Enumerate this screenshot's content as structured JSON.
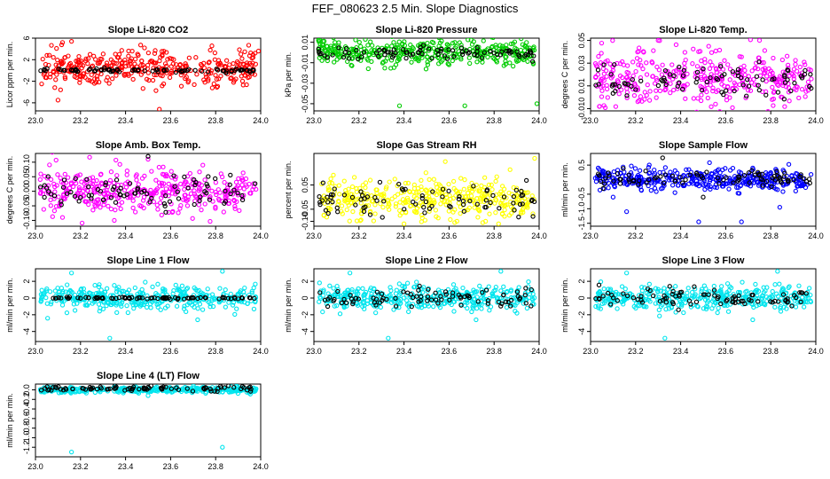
{
  "figure": {
    "title": "FEF_080623  2.5 Min. Slope Diagnostics",
    "main_point_color": "#000000"
  },
  "chart_data": [
    {
      "type": "scatter",
      "title": "Slope Li-820 CO2",
      "xlabel": "",
      "ylabel": "Licor ppm per min.",
      "xlim": [
        23.0,
        24.0
      ],
      "ylim": [
        -7.5,
        6
      ],
      "xticks": [
        "23.0",
        "23.2",
        "23.4",
        "23.6",
        "23.8",
        "24.0"
      ],
      "yticks": [
        "-6",
        "-2",
        "2",
        "6"
      ],
      "grid": false,
      "series": [
        {
          "color": "#ff0000",
          "center": 0.4,
          "spread": 1.6,
          "outliers": [
            [
              23.12,
              5.2
            ],
            [
              23.16,
              5.4
            ],
            [
              23.55,
              -7.2
            ],
            [
              23.99,
              3.6
            ],
            [
              23.1,
              -5.5
            ]
          ]
        },
        {
          "color": "#000000",
          "center": 0.0,
          "spread": 0.2,
          "outliers": []
        }
      ]
    },
    {
      "type": "scatter",
      "title": "Slope Li-820 Pressure",
      "xlabel": "",
      "ylabel": "kPa per min.",
      "xlim": [
        23.0,
        24.0
      ],
      "ylim": [
        -0.057,
        0.014
      ],
      "xticks": [
        "23.0",
        "23.2",
        "23.4",
        "23.6",
        "23.8",
        "24.0"
      ],
      "yticks": [
        "0.01",
        "-0.01",
        "-0.03",
        "-0.05"
      ],
      "grid": false,
      "series": [
        {
          "color": "#00cc00",
          "center": 0.0,
          "spread": 0.006,
          "outliers": [
            [
              23.02,
              0.012
            ],
            [
              23.04,
              0.011
            ],
            [
              23.38,
              -0.052
            ],
            [
              23.67,
              -0.052
            ],
            [
              23.99,
              -0.05
            ]
          ]
        },
        {
          "color": "#000000",
          "center": 0.0,
          "spread": 0.003,
          "outliers": []
        }
      ]
    },
    {
      "type": "scatter",
      "title": "Slope Li-820 Temp.",
      "xlabel": "",
      "ylabel": "degrees C per min.",
      "xlim": [
        23.0,
        24.0
      ],
      "ylim": [
        -0.012,
        0.052
      ],
      "xticks": [
        "23.0",
        "23.2",
        "23.4",
        "23.6",
        "23.8",
        "24.0"
      ],
      "yticks": [
        "0.05",
        "0.03",
        "0.01",
        "-0.010"
      ],
      "grid": false,
      "series": [
        {
          "color": "#ff00ff",
          "center": 0.018,
          "spread": 0.012,
          "outliers": [
            [
              23.3,
              0.05
            ],
            [
              23.75,
              0.05
            ],
            [
              23.04,
              -0.008
            ]
          ]
        },
        {
          "color": "#000000",
          "center": 0.016,
          "spread": 0.008,
          "outliers": []
        }
      ]
    },
    {
      "type": "scatter",
      "title": "Slope Amb. Box Temp.",
      "xlabel": "",
      "ylabel": "degrees C per min.",
      "xlim": [
        23.0,
        24.0
      ],
      "ylim": [
        -0.12,
        0.13
      ],
      "xticks": [
        "23.0",
        "23.2",
        "23.4",
        "23.6",
        "23.8",
        "24.0"
      ],
      "yticks": [
        "0.10",
        "0.05",
        "0.00",
        "-0.05",
        "-0.10"
      ],
      "grid": false,
      "series": [
        {
          "color": "#ff00ff",
          "center": 0.0,
          "spread": 0.04,
          "outliers": [
            [
              23.5,
              0.11
            ],
            [
              23.35,
              -0.1
            ],
            [
              23.12,
              -0.09
            ]
          ]
        },
        {
          "color": "#000000",
          "center": -0.005,
          "spread": 0.03,
          "outliers": [
            [
              23.5,
              0.12
            ]
          ]
        }
      ]
    },
    {
      "type": "scatter",
      "title": "Slope Gas Stream RH",
      "xlabel": "",
      "ylabel": "percent per min.",
      "xlim": [
        23.0,
        24.0
      ],
      "ylim": [
        -0.12,
        0.18
      ],
      "xticks": [
        "23.0",
        "23.2",
        "23.4",
        "23.6",
        "23.8",
        "24.0"
      ],
      "yticks": [
        "0.05",
        "-0.05",
        "-0.10"
      ],
      "grid": false,
      "series": [
        {
          "color": "#ffff00",
          "center": -0.01,
          "spread": 0.04,
          "outliers": [
            [
              23.98,
              0.16
            ],
            [
              23.4,
              -0.11
            ],
            [
              23.82,
              -0.11
            ]
          ]
        },
        {
          "color": "#000000",
          "center": -0.01,
          "spread": 0.03,
          "outliers": []
        }
      ]
    },
    {
      "type": "scatter",
      "title": "Slope Sample Flow",
      "xlabel": "",
      "ylabel": "ml/min per min.",
      "xlim": [
        23.0,
        24.0
      ],
      "ylim": [
        -1.6,
        0.9
      ],
      "xticks": [
        "23.0",
        "23.2",
        "23.4",
        "23.6",
        "23.8",
        "24.0"
      ],
      "yticks": [
        "0.5",
        "-0.5",
        "-1.0",
        "-1.5"
      ],
      "grid": false,
      "series": [
        {
          "color": "#0000ff",
          "center": 0.0,
          "spread": 0.18,
          "outliers": [
            [
              23.16,
              -1.1
            ],
            [
              23.48,
              -1.45
            ],
            [
              23.67,
              -1.45
            ],
            [
              23.84,
              -0.95
            ],
            [
              23.1,
              -0.6
            ]
          ]
        },
        {
          "color": "#000000",
          "center": 0.05,
          "spread": 0.15,
          "outliers": [
            [
              23.32,
              0.75
            ],
            [
              23.5,
              -0.6
            ]
          ]
        }
      ]
    },
    {
      "type": "scatter",
      "title": "Slope Line 1 Flow",
      "xlabel": "",
      "ylabel": "ml/min per min.",
      "xlim": [
        23.0,
        24.0
      ],
      "ylim": [
        -5.2,
        3.5
      ],
      "xticks": [
        "23.0",
        "23.2",
        "23.4",
        "23.6",
        "23.8",
        "24.0"
      ],
      "yticks": [
        "2",
        "0",
        "-2",
        "-4"
      ],
      "grid": false,
      "series": [
        {
          "color": "#00e5ee",
          "center": 0.0,
          "spread": 0.7,
          "outliers": [
            [
              23.33,
              -4.8
            ],
            [
              23.16,
              3.0
            ],
            [
              23.83,
              3.2
            ],
            [
              23.72,
              -2.6
            ]
          ]
        },
        {
          "color": "#000000",
          "center": 0.0,
          "spread": 0.06,
          "outliers": []
        }
      ]
    },
    {
      "type": "scatter",
      "title": "Slope Line 2 Flow",
      "xlabel": "",
      "ylabel": "ml/min per min.",
      "xlim": [
        23.0,
        24.0
      ],
      "ylim": [
        -5.2,
        3.5
      ],
      "xticks": [
        "23.0",
        "23.2",
        "23.4",
        "23.6",
        "23.8",
        "24.0"
      ],
      "yticks": [
        "2",
        "0",
        "-2",
        "-4"
      ],
      "grid": false,
      "series": [
        {
          "color": "#00e5ee",
          "center": 0.0,
          "spread": 0.7,
          "outliers": [
            [
              23.33,
              -4.8
            ],
            [
              23.16,
              3.0
            ],
            [
              23.83,
              3.2
            ],
            [
              23.72,
              -2.6
            ]
          ]
        },
        {
          "color": "#000000",
          "center": 0.0,
          "spread": 0.6,
          "outliers": []
        }
      ]
    },
    {
      "type": "scatter",
      "title": "Slope Line 3 Flow",
      "xlabel": "",
      "ylabel": "ml/min per min.",
      "xlim": [
        23.0,
        24.0
      ],
      "ylim": [
        -5.2,
        3.5
      ],
      "xticks": [
        "23.0",
        "23.2",
        "23.4",
        "23.6",
        "23.8",
        "24.0"
      ],
      "yticks": [
        "2",
        "0",
        "-2",
        "-4"
      ],
      "grid": false,
      "series": [
        {
          "color": "#00e5ee",
          "center": 0.0,
          "spread": 0.7,
          "outliers": [
            [
              23.33,
              -4.8
            ],
            [
              23.16,
              3.0
            ],
            [
              23.83,
              3.2
            ],
            [
              23.72,
              -2.6
            ]
          ]
        },
        {
          "color": "#000000",
          "center": 0.0,
          "spread": 0.6,
          "outliers": []
        }
      ]
    },
    {
      "type": "scatter",
      "title": "Slope Line 4 (LT) Flow",
      "xlabel": "",
      "ylabel": "ml/min per min.",
      "xlim": [
        23.0,
        24.0
      ],
      "ylim": [
        -1.4,
        0.12
      ],
      "xticks": [
        "23.0",
        "23.2",
        "23.4",
        "23.6",
        "23.8",
        "24.0"
      ],
      "yticks": [
        "0.0",
        "-0.2",
        "-0.4",
        "-0.6",
        "-0.8",
        "-1.0",
        "-1.2"
      ],
      "grid": false,
      "series": [
        {
          "color": "#00e5ee",
          "center": 0.0,
          "spread": 0.03,
          "outliers": [
            [
              23.16,
              -1.3
            ],
            [
              23.83,
              -1.2
            ],
            [
              23.5,
              -0.12
            ]
          ]
        },
        {
          "color": "#000000",
          "center": 0.03,
          "spread": 0.03,
          "outliers": []
        }
      ]
    }
  ]
}
